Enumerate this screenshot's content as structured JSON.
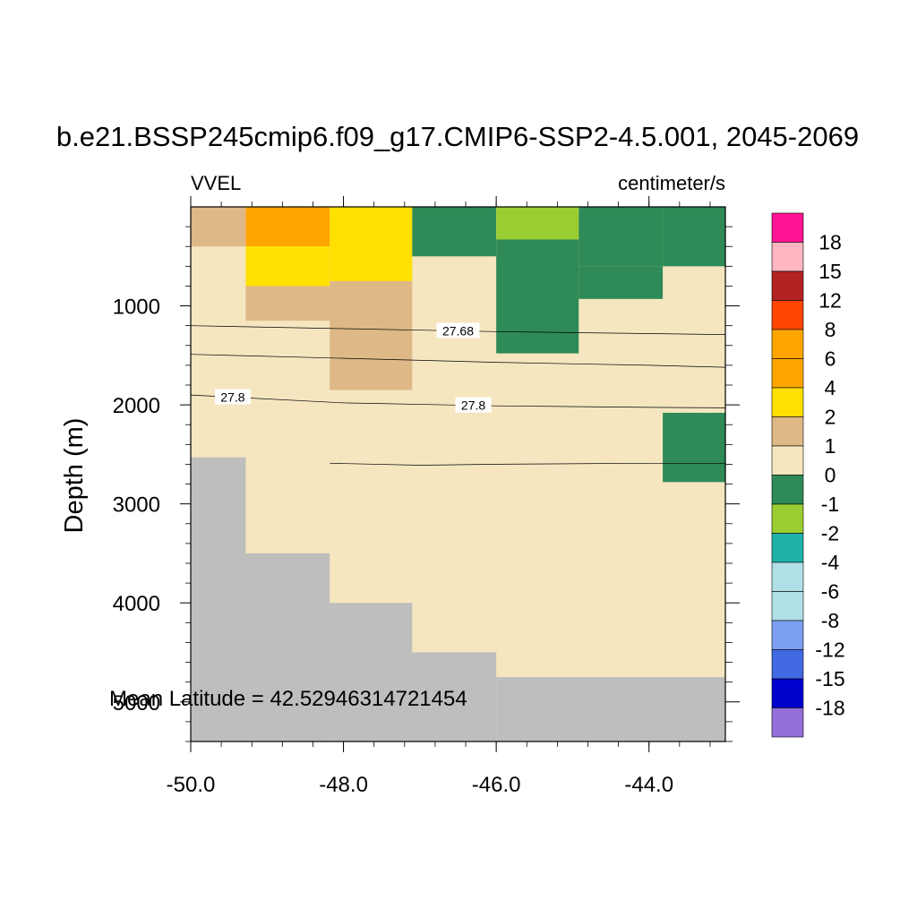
{
  "chart_data": {
    "type": "heatmap",
    "title": "b.e21.BSSP245cmip6.f09_g17.CMIP6-SSP2-4.5.001, 2045-2069",
    "left_label": "VVEL",
    "right_label": "centimeter/s",
    "ylabel": "Depth (m)",
    "xlabel": "",
    "annotation": "Mean Latitude = 42.52946314721454",
    "xlim": [
      -50.0,
      -43.0
    ],
    "ylim": [
      0,
      5400
    ],
    "y_inverted": true,
    "x_ticks": [
      -50.0,
      -48.0,
      -46.0,
      -44.0
    ],
    "x_tick_labels": [
      "-50.0",
      "-48.0",
      "-46.0",
      "-44.0"
    ],
    "y_ticks": [
      1000,
      2000,
      3000,
      4000,
      5000
    ],
    "y_tick_labels": [
      "1000",
      "2000",
      "3000",
      "4000",
      "5000"
    ],
    "land_color": "#bebebe",
    "cells": [
      {
        "x0": -50.0,
        "x1": -49.28,
        "y0": 0,
        "y1": 400,
        "color": "#deb887"
      },
      {
        "x0": -49.28,
        "x1": -48.18,
        "y0": 0,
        "y1": 400,
        "color": "#ffa500"
      },
      {
        "x0": -49.28,
        "x1": -48.18,
        "y0": 400,
        "y1": 800,
        "color": "#ffe000"
      },
      {
        "x0": -48.18,
        "x1": -47.1,
        "y0": 0,
        "y1": 750,
        "color": "#ffe000"
      },
      {
        "x0": -49.28,
        "x1": -48.18,
        "y0": 800,
        "y1": 1150,
        "color": "#deb887"
      },
      {
        "x0": -48.18,
        "x1": -47.1,
        "y0": 750,
        "y1": 1850,
        "color": "#deb887"
      },
      {
        "x0": -47.1,
        "x1": -46.0,
        "y0": 0,
        "y1": 500,
        "color": "#2e8b57"
      },
      {
        "x0": -46.0,
        "x1": -44.92,
        "y0": 0,
        "y1": 330,
        "color": "#9acd32"
      },
      {
        "x0": -46.0,
        "x1": -44.92,
        "y0": 330,
        "y1": 1480,
        "color": "#2e8b57"
      },
      {
        "x0": -44.92,
        "x1": -43.82,
        "y0": 0,
        "y1": 600,
        "color": "#2e8b57"
      },
      {
        "x0": -44.92,
        "x1": -43.82,
        "y0": 600,
        "y1": 930,
        "color": "#2e8b57"
      },
      {
        "x0": -43.82,
        "x1": -43.0,
        "y0": 0,
        "y1": 600,
        "color": "#2e8b57"
      },
      {
        "x0": -43.82,
        "x1": -43.0,
        "y0": 2080,
        "y1": 2780,
        "color": "#2e8b57"
      }
    ],
    "land_steps": [
      {
        "x0": -50.0,
        "x1": -49.28,
        "top": 2530
      },
      {
        "x0": -49.28,
        "x1": -48.18,
        "top": 3500
      },
      {
        "x0": -48.18,
        "x1": -47.1,
        "top": 4000
      },
      {
        "x0": -47.1,
        "x1": -46.0,
        "top": 4500
      },
      {
        "x0": -46.0,
        "x1": -43.0,
        "top": 4750
      }
    ],
    "contours": [
      {
        "label": "27.68",
        "label_x": -46.5,
        "points": [
          [
            -50.0,
            1200
          ],
          [
            -48.0,
            1230
          ],
          [
            -46.0,
            1260
          ],
          [
            -44.0,
            1280
          ],
          [
            -43.0,
            1290
          ]
        ]
      },
      {
        "label": "",
        "label_x": null,
        "points": [
          [
            -50.0,
            1490
          ],
          [
            -48.0,
            1530
          ],
          [
            -46.0,
            1570
          ],
          [
            -44.0,
            1600
          ],
          [
            -43.0,
            1620
          ]
        ]
      },
      {
        "label": "27.8",
        "label_x": -46.3,
        "label2": "27.8",
        "label2_x": -49.45,
        "points": [
          [
            -50.0,
            1900
          ],
          [
            -48.0,
            1980
          ],
          [
            -46.0,
            2010
          ],
          [
            -44.0,
            2025
          ],
          [
            -43.0,
            2030
          ]
        ]
      },
      {
        "label": "",
        "label_x": null,
        "points": [
          [
            -48.18,
            2590
          ],
          [
            -47.0,
            2610
          ],
          [
            -46.0,
            2600
          ],
          [
            -44.0,
            2590
          ],
          [
            -43.0,
            2590
          ]
        ]
      }
    ],
    "colorbar": {
      "colors": [
        "#ff1493",
        "#ffb6c1",
        "#b22222",
        "#ff4500",
        "#ffa500",
        "#ffa500",
        "#ffe000",
        "#deb887",
        "#f5e6c0",
        "#2e8b57",
        "#9acd32",
        "#20b2aa",
        "#b0e0e6",
        "#b0e0e6",
        "#7b9ef0",
        "#4169e1",
        "#0000cd",
        "#9370db"
      ],
      "labels": [
        "18",
        "15",
        "12",
        "8",
        "6",
        "4",
        "2",
        "1",
        "0",
        "-1",
        "-2",
        "-4",
        "-6",
        "-8",
        "-12",
        "-15",
        "-18"
      ]
    }
  }
}
